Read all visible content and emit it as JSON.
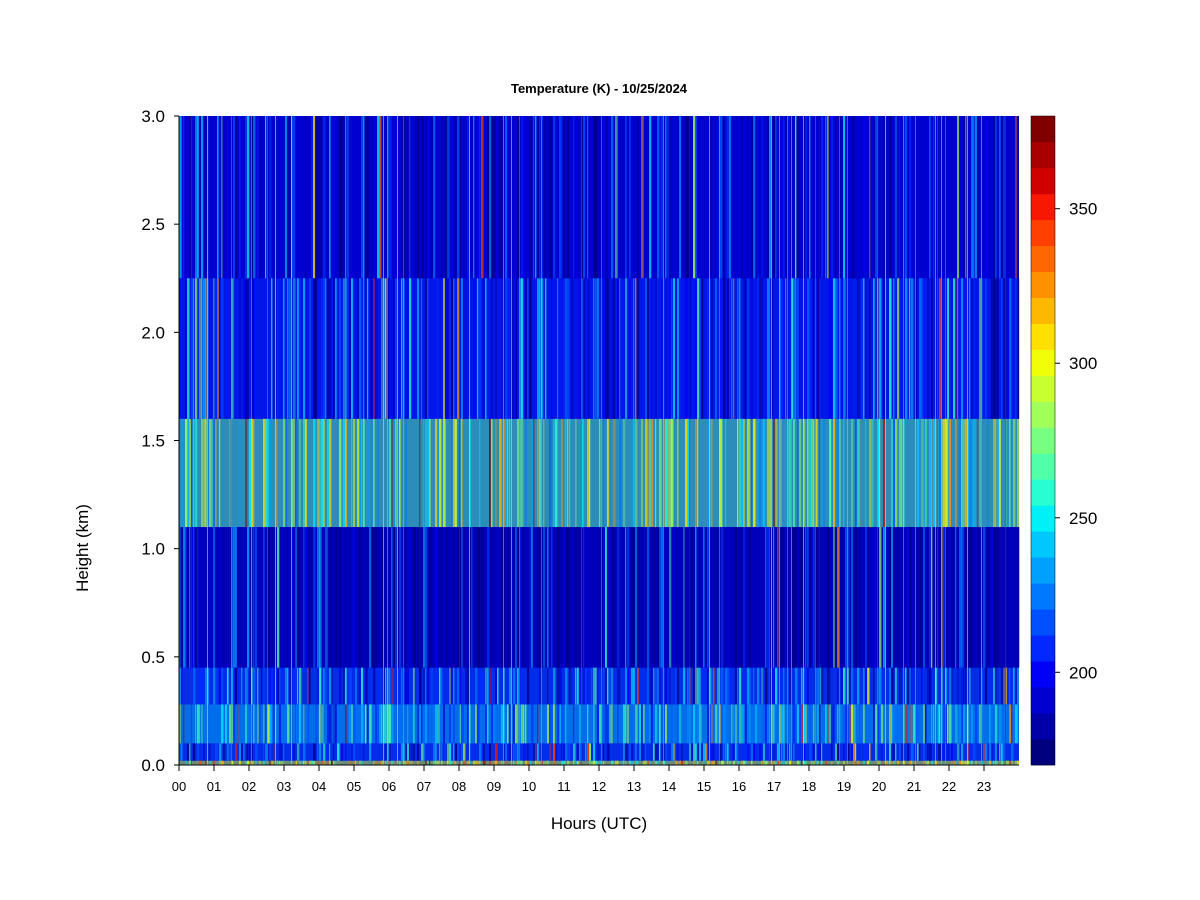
{
  "chart_data": {
    "type": "heatmap",
    "title": "Temperature (K) - 10/25/2024",
    "xlabel": "Hours (UTC)",
    "ylabel": "Height (km)",
    "xlim": [
      0,
      24
    ],
    "ylim": [
      0.0,
      3.0
    ],
    "x_ticks": [
      {
        "value": 0,
        "label": "00"
      },
      {
        "value": 1,
        "label": "01"
      },
      {
        "value": 2,
        "label": "02"
      },
      {
        "value": 3,
        "label": "03"
      },
      {
        "value": 4,
        "label": "04"
      },
      {
        "value": 5,
        "label": "05"
      },
      {
        "value": 6,
        "label": "06"
      },
      {
        "value": 7,
        "label": "07"
      },
      {
        "value": 8,
        "label": "08"
      },
      {
        "value": 9,
        "label": "09"
      },
      {
        "value": 10,
        "label": "10"
      },
      {
        "value": 11,
        "label": "11"
      },
      {
        "value": 12,
        "label": "12"
      },
      {
        "value": 13,
        "label": "13"
      },
      {
        "value": 14,
        "label": "14"
      },
      {
        "value": 15,
        "label": "15"
      },
      {
        "value": 16,
        "label": "16"
      },
      {
        "value": 17,
        "label": "17"
      },
      {
        "value": 18,
        "label": "18"
      },
      {
        "value": 19,
        "label": "19"
      },
      {
        "value": 20,
        "label": "20"
      },
      {
        "value": 21,
        "label": "21"
      },
      {
        "value": 22,
        "label": "22"
      },
      {
        "value": 23,
        "label": "23"
      }
    ],
    "y_ticks": [
      {
        "value": 0.0,
        "label": "0.0"
      },
      {
        "value": 0.5,
        "label": "0.5"
      },
      {
        "value": 1.0,
        "label": "1.0"
      },
      {
        "value": 1.5,
        "label": "1.5"
      },
      {
        "value": 2.0,
        "label": "2.0"
      },
      {
        "value": 2.5,
        "label": "2.5"
      },
      {
        "value": 3.0,
        "label": "3.0"
      }
    ],
    "colorbar": {
      "min": 170,
      "max": 380,
      "ticks": [
        {
          "value": 200,
          "label": "200"
        },
        {
          "value": 250,
          "label": "250"
        },
        {
          "value": 300,
          "label": "300"
        },
        {
          "value": 350,
          "label": "350"
        }
      ],
      "colors": [
        "#00007f",
        "#0000a8",
        "#0000d0",
        "#0000f8",
        "#0028ff",
        "#0050ff",
        "#0078ff",
        "#00a0ff",
        "#00c8ff",
        "#00f0f8",
        "#28ffd0",
        "#50ffa8",
        "#78ff80",
        "#a0ff58",
        "#c8ff30",
        "#f0ff08",
        "#ffe000",
        "#ffb800",
        "#ff9000",
        "#ff6800",
        "#ff4000",
        "#f81800",
        "#d00000",
        "#a80000",
        "#800000"
      ]
    },
    "height_bands": [
      {
        "from": 0.0,
        "to": 0.02,
        "temperature": 290
      },
      {
        "from": 0.02,
        "to": 0.1,
        "temperature": 215
      },
      {
        "from": 0.1,
        "to": 0.28,
        "temperature": 240
      },
      {
        "from": 0.28,
        "to": 0.45,
        "temperature": 215
      },
      {
        "from": 0.45,
        "to": 1.1,
        "temperature": 185
      },
      {
        "from": 1.1,
        "to": 1.6,
        "temperature": 270
      },
      {
        "from": 1.6,
        "to": 2.25,
        "temperature": 210
      },
      {
        "from": 2.25,
        "to": 3.0,
        "temperature": 195
      }
    ]
  }
}
